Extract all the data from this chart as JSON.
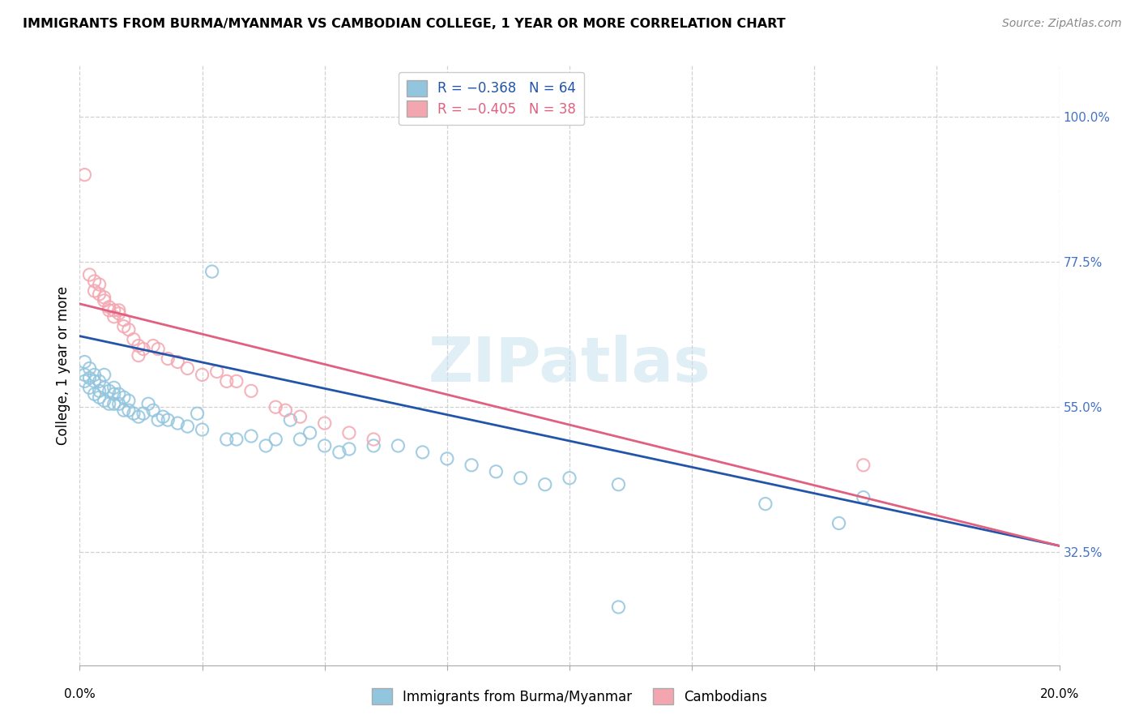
{
  "title": "IMMIGRANTS FROM BURMA/MYANMAR VS CAMBODIAN COLLEGE, 1 YEAR OR MORE CORRELATION CHART",
  "source": "Source: ZipAtlas.com",
  "ylabel": "College, 1 year or more",
  "x_range": [
    0.0,
    0.2
  ],
  "y_range": [
    0.15,
    1.08
  ],
  "blue_color": "#92C5DE",
  "pink_color": "#F4A6B0",
  "blue_line_color": "#2255AA",
  "pink_line_color": "#E06080",
  "right_axis_color": "#4472C4",
  "grid_color": "#CCCCCC",
  "blue_scatter": [
    [
      0.001,
      0.62
    ],
    [
      0.001,
      0.6
    ],
    [
      0.001,
      0.59
    ],
    [
      0.002,
      0.61
    ],
    [
      0.002,
      0.595
    ],
    [
      0.002,
      0.58
    ],
    [
      0.003,
      0.6
    ],
    [
      0.003,
      0.59
    ],
    [
      0.003,
      0.57
    ],
    [
      0.004,
      0.59
    ],
    [
      0.004,
      0.575
    ],
    [
      0.004,
      0.565
    ],
    [
      0.005,
      0.6
    ],
    [
      0.005,
      0.58
    ],
    [
      0.005,
      0.56
    ],
    [
      0.006,
      0.575
    ],
    [
      0.006,
      0.555
    ],
    [
      0.007,
      0.58
    ],
    [
      0.007,
      0.57
    ],
    [
      0.007,
      0.555
    ],
    [
      0.008,
      0.57
    ],
    [
      0.008,
      0.555
    ],
    [
      0.009,
      0.565
    ],
    [
      0.009,
      0.545
    ],
    [
      0.01,
      0.56
    ],
    [
      0.01,
      0.545
    ],
    [
      0.011,
      0.54
    ],
    [
      0.012,
      0.535
    ],
    [
      0.013,
      0.54
    ],
    [
      0.014,
      0.555
    ],
    [
      0.015,
      0.545
    ],
    [
      0.016,
      0.53
    ],
    [
      0.017,
      0.535
    ],
    [
      0.018,
      0.53
    ],
    [
      0.02,
      0.525
    ],
    [
      0.022,
      0.52
    ],
    [
      0.024,
      0.54
    ],
    [
      0.025,
      0.515
    ],
    [
      0.027,
      0.76
    ],
    [
      0.03,
      0.5
    ],
    [
      0.032,
      0.5
    ],
    [
      0.035,
      0.505
    ],
    [
      0.038,
      0.49
    ],
    [
      0.04,
      0.5
    ],
    [
      0.043,
      0.53
    ],
    [
      0.045,
      0.5
    ],
    [
      0.047,
      0.51
    ],
    [
      0.05,
      0.49
    ],
    [
      0.053,
      0.48
    ],
    [
      0.055,
      0.485
    ],
    [
      0.06,
      0.49
    ],
    [
      0.065,
      0.49
    ],
    [
      0.07,
      0.48
    ],
    [
      0.075,
      0.47
    ],
    [
      0.08,
      0.46
    ],
    [
      0.085,
      0.45
    ],
    [
      0.09,
      0.44
    ],
    [
      0.095,
      0.43
    ],
    [
      0.1,
      0.44
    ],
    [
      0.11,
      0.43
    ],
    [
      0.14,
      0.4
    ],
    [
      0.155,
      0.37
    ],
    [
      0.16,
      0.41
    ],
    [
      0.11,
      0.24
    ]
  ],
  "pink_scatter": [
    [
      0.001,
      0.91
    ],
    [
      0.002,
      0.755
    ],
    [
      0.003,
      0.745
    ],
    [
      0.003,
      0.73
    ],
    [
      0.004,
      0.74
    ],
    [
      0.004,
      0.725
    ],
    [
      0.005,
      0.72
    ],
    [
      0.005,
      0.715
    ],
    [
      0.006,
      0.705
    ],
    [
      0.006,
      0.7
    ],
    [
      0.007,
      0.7
    ],
    [
      0.007,
      0.69
    ],
    [
      0.008,
      0.7
    ],
    [
      0.008,
      0.695
    ],
    [
      0.009,
      0.685
    ],
    [
      0.009,
      0.675
    ],
    [
      0.01,
      0.67
    ],
    [
      0.011,
      0.655
    ],
    [
      0.012,
      0.645
    ],
    [
      0.012,
      0.63
    ],
    [
      0.013,
      0.64
    ],
    [
      0.015,
      0.645
    ],
    [
      0.016,
      0.64
    ],
    [
      0.018,
      0.625
    ],
    [
      0.02,
      0.62
    ],
    [
      0.022,
      0.61
    ],
    [
      0.025,
      0.6
    ],
    [
      0.028,
      0.605
    ],
    [
      0.03,
      0.59
    ],
    [
      0.032,
      0.59
    ],
    [
      0.035,
      0.575
    ],
    [
      0.04,
      0.55
    ],
    [
      0.042,
      0.545
    ],
    [
      0.045,
      0.535
    ],
    [
      0.05,
      0.525
    ],
    [
      0.055,
      0.51
    ],
    [
      0.06,
      0.5
    ],
    [
      0.16,
      0.46
    ]
  ],
  "blue_trendline": [
    [
      0.0,
      0.66
    ],
    [
      0.2,
      0.335
    ]
  ],
  "pink_trendline": [
    [
      0.0,
      0.71
    ],
    [
      0.2,
      0.335
    ]
  ],
  "watermark": "ZIPatlas",
  "y_ticks": [
    0.325,
    0.55,
    0.775,
    1.0
  ],
  "y_tick_labels": [
    "32.5%",
    "55.0%",
    "77.5%",
    "100.0%"
  ],
  "x_ticks": [
    0.0,
    0.025,
    0.05,
    0.075,
    0.1,
    0.125,
    0.15,
    0.175,
    0.2
  ]
}
